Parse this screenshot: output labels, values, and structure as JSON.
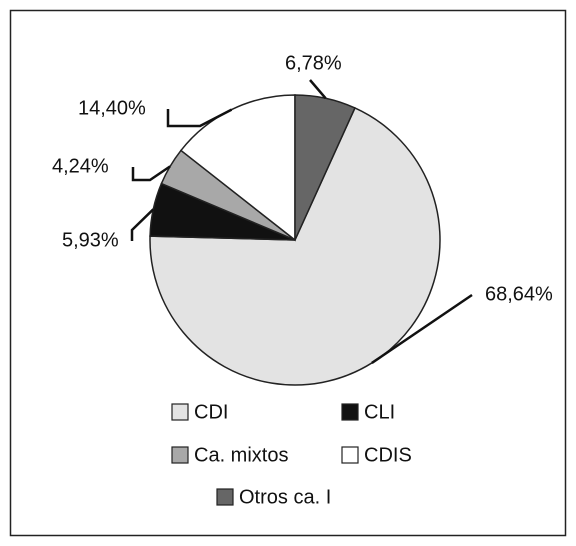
{
  "chart_data": {
    "type": "pie",
    "categories": [
      "CDI",
      "CLI",
      "Ca. mixtos",
      "CDIS",
      "Otros ca. I"
    ],
    "values": [
      68.64,
      5.93,
      4.24,
      14.4,
      6.78
    ],
    "value_labels": [
      "68,64%",
      "5,93%",
      "4,24%",
      "14,40%",
      "6,78%"
    ],
    "colors": [
      "#e3e3e3",
      "#111111",
      "#a8a8a8",
      "#ffffff",
      "#666666"
    ]
  }
}
